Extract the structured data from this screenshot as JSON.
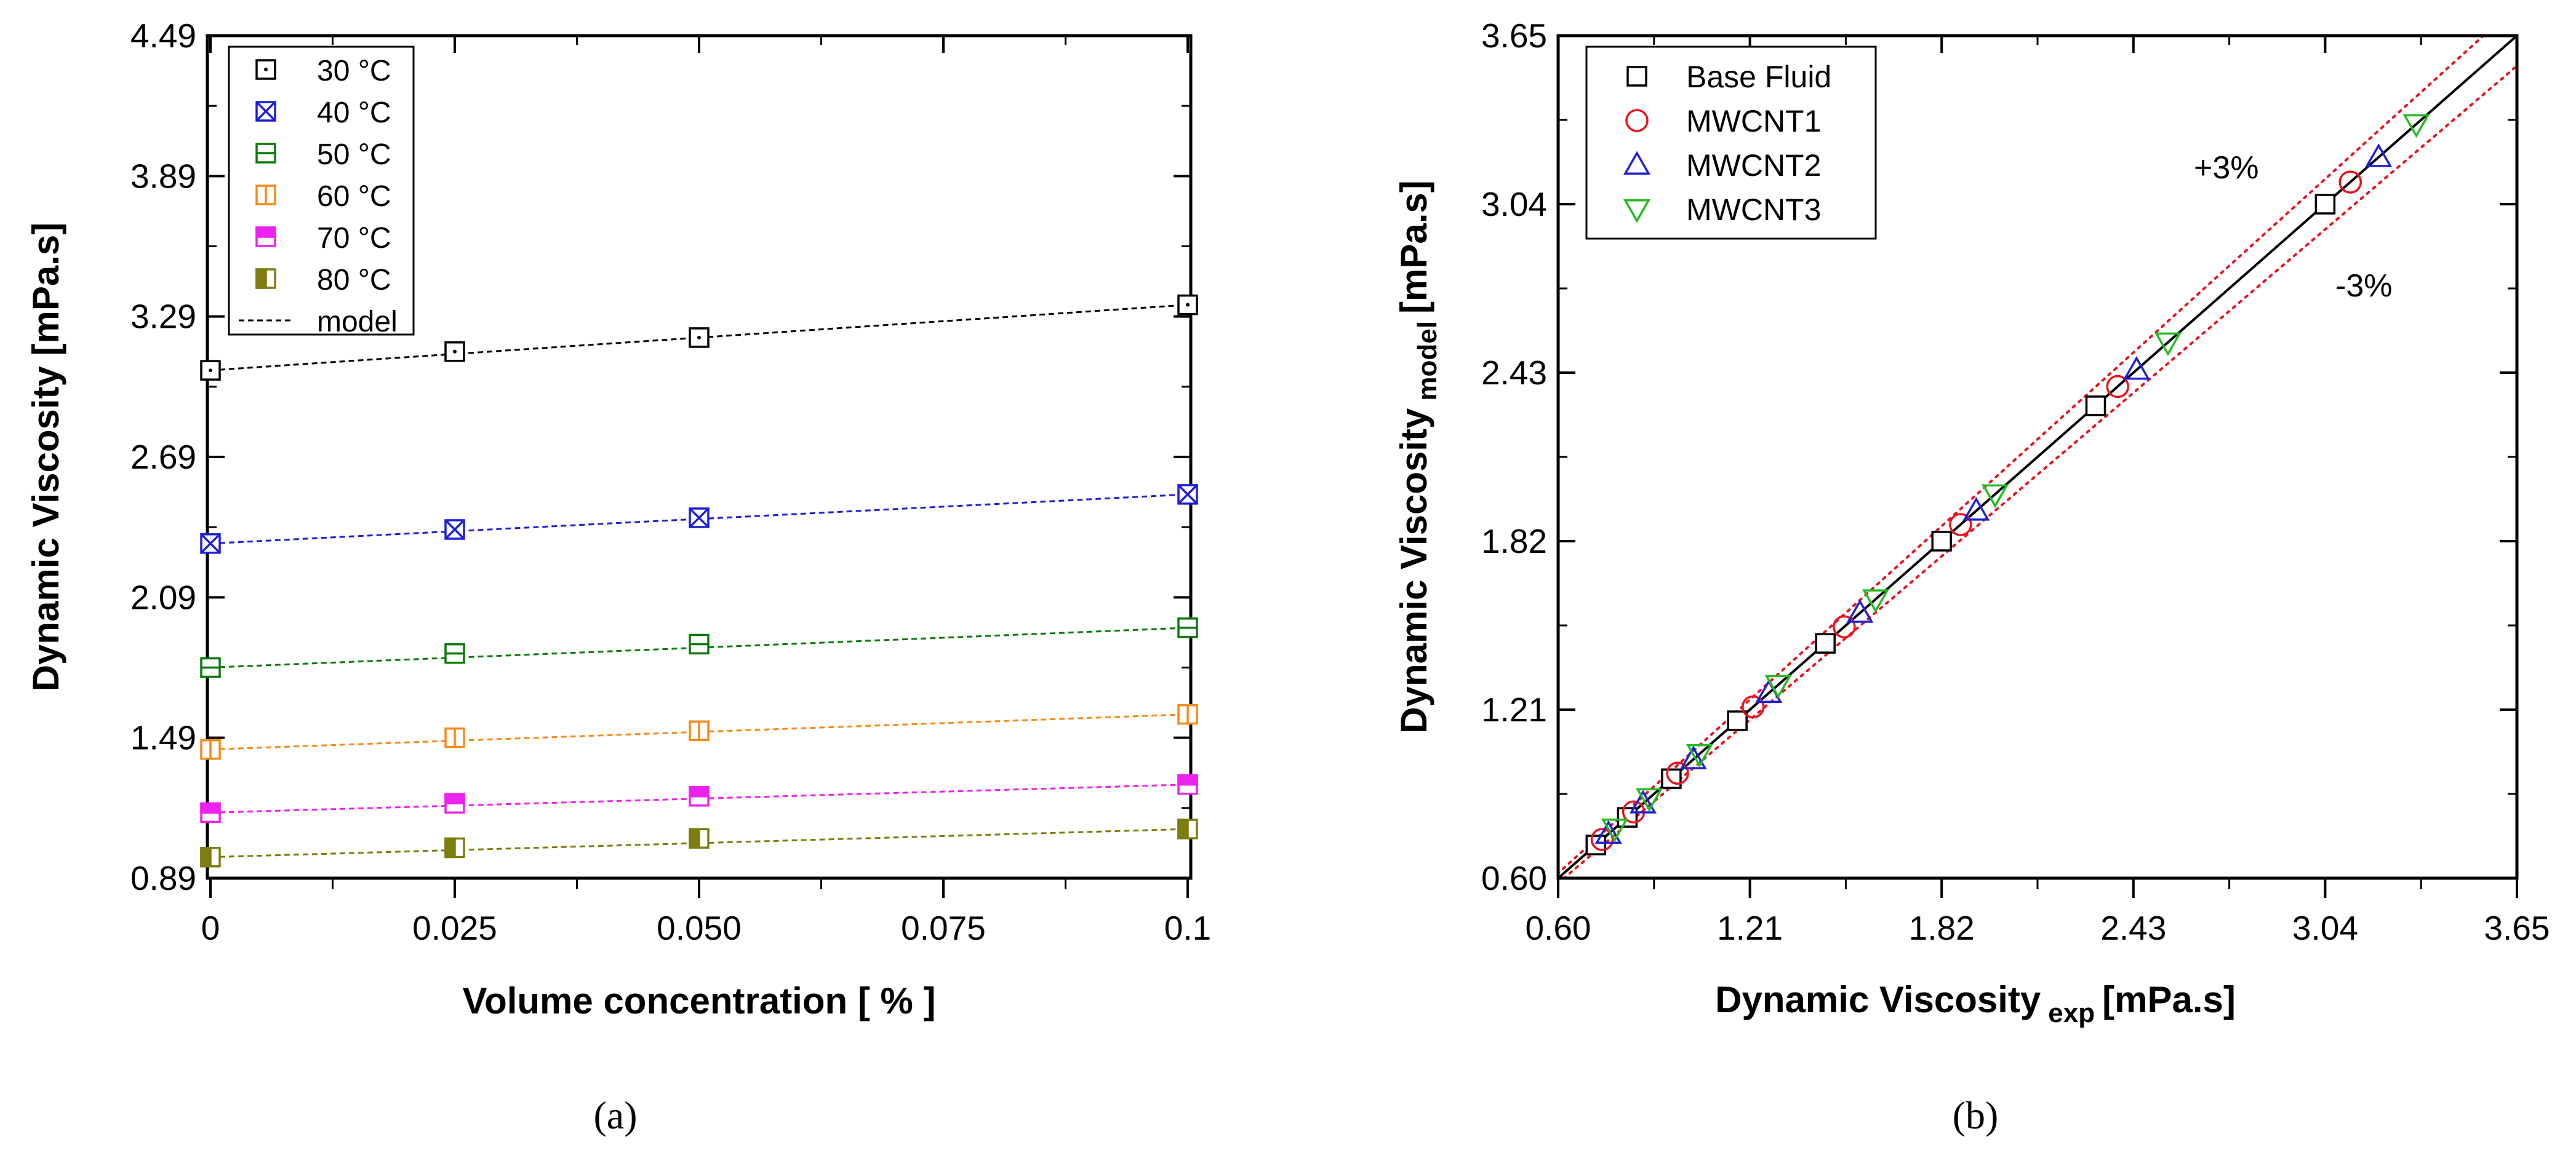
{
  "chart_data": [
    {
      "id": "a",
      "type": "line",
      "panel_label": "(a)",
      "title": "",
      "xlabel": "Volume concentration [ % ]",
      "ylabel": "Dynamic Viscosity [mPa.s]",
      "xlim": [
        0,
        0.1
      ],
      "ylim": [
        0.89,
        4.49
      ],
      "x_ticks": [
        0,
        0.025,
        0.05,
        0.075,
        0.1
      ],
      "x_tick_labels": [
        "0",
        "0.025",
        "0.050",
        "0.075",
        "0.1"
      ],
      "y_ticks": [
        0.89,
        1.49,
        2.09,
        2.69,
        3.29,
        3.89,
        4.49
      ],
      "y_tick_labels": [
        "0.89",
        "1.49",
        "2.09",
        "2.69",
        "3.29",
        "3.89",
        "4.49"
      ],
      "legend_position": "top-left",
      "x": [
        0,
        0.025,
        0.05,
        0.1
      ],
      "series": [
        {
          "name": "30 °C",
          "values": [
            3.06,
            3.14,
            3.2,
            3.34
          ],
          "color": "#000000",
          "marker": "square-dot"
        },
        {
          "name": "40 °C",
          "values": [
            2.32,
            2.38,
            2.43,
            2.53
          ],
          "color": "#1f1fd6",
          "marker": "square-x"
        },
        {
          "name": "50 °C",
          "values": [
            1.79,
            1.85,
            1.89,
            1.96
          ],
          "color": "#0a7a0a",
          "marker": "square-hbar"
        },
        {
          "name": "60 °C",
          "values": [
            1.44,
            1.49,
            1.52,
            1.59
          ],
          "color": "#f58a1a",
          "marker": "square-vbar"
        },
        {
          "name": "70 °C",
          "values": [
            1.17,
            1.21,
            1.24,
            1.29
          ],
          "color": "#ee22ee",
          "marker": "square-tophalf"
        },
        {
          "name": "80 °C",
          "values": [
            0.98,
            1.02,
            1.06,
            1.1
          ],
          "color": "#7d7d10",
          "marker": "square-lefthalf"
        }
      ],
      "model_legend_label": "model"
    },
    {
      "id": "b",
      "type": "scatter",
      "panel_label": "(b)",
      "title": "",
      "xlabel": "Dynamic Viscosity",
      "xlabel_sub": "exp",
      "xlabel_unit": "[mPa.s]",
      "ylabel": "Dynamic Viscosity",
      "ylabel_sub": "model",
      "ylabel_unit": "[mPa.s]",
      "xlim": [
        0.6,
        3.65
      ],
      "ylim": [
        0.6,
        3.65
      ],
      "x_ticks": [
        0.6,
        1.21,
        1.82,
        2.43,
        3.04,
        3.65
      ],
      "x_tick_labels": [
        "0.60",
        "1.21",
        "1.82",
        "2.43",
        "3.04",
        "3.65"
      ],
      "y_ticks": [
        0.6,
        1.21,
        1.82,
        2.43,
        3.04,
        3.65
      ],
      "y_tick_labels": [
        "0.60",
        "1.21",
        "1.82",
        "2.43",
        "3.04",
        "3.65"
      ],
      "legend_position": "top-left",
      "series": [
        {
          "name": "Base Fluid",
          "color": "#000000",
          "marker": "square",
          "x": [
            0.72,
            0.82,
            0.96,
            1.17,
            1.45,
            1.82,
            2.31,
            3.04
          ],
          "y": [
            0.72,
            0.82,
            0.96,
            1.17,
            1.45,
            1.82,
            2.31,
            3.04
          ]
        },
        {
          "name": "MWCNT1",
          "color": "#e8141c",
          "marker": "circle",
          "x": [
            0.74,
            0.84,
            0.98,
            1.22,
            1.51,
            1.88,
            2.38,
            3.12
          ],
          "y": [
            0.74,
            0.84,
            0.98,
            1.22,
            1.51,
            1.88,
            2.38,
            3.12
          ]
        },
        {
          "name": "MWCNT2",
          "color": "#1f1fd6",
          "marker": "triangle-up",
          "x": [
            0.76,
            0.87,
            1.03,
            1.27,
            1.56,
            1.93,
            2.44,
            3.21
          ],
          "y": [
            0.76,
            0.87,
            1.03,
            1.27,
            1.56,
            1.93,
            2.44,
            3.21
          ]
        },
        {
          "name": "MWCNT3",
          "color": "#22bb22",
          "marker": "triangle-down",
          "x": [
            0.78,
            0.89,
            1.05,
            1.3,
            1.61,
            1.99,
            2.54,
            3.33
          ],
          "y": [
            0.78,
            0.89,
            1.05,
            1.3,
            1.61,
            1.99,
            2.54,
            3.33
          ]
        }
      ],
      "reference_line": {
        "slope": 1
      },
      "bands": [
        {
          "label": "+3%",
          "factor": 1.03,
          "color": "#e8141c"
        },
        {
          "label": "-3%",
          "factor": 0.97,
          "color": "#e8141c"
        }
      ]
    }
  ]
}
